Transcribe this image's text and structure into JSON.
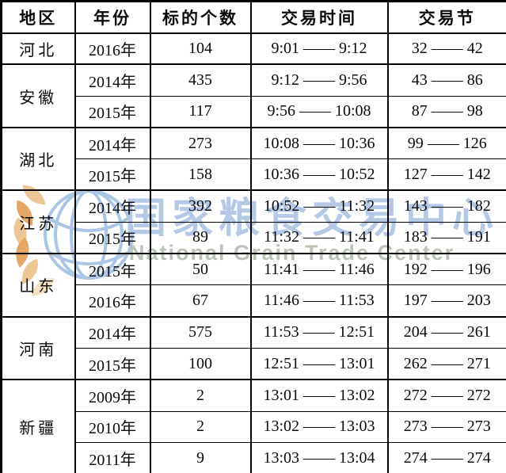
{
  "watermark": {
    "cn_text": "国家粮食交易中心",
    "en_text": "National Grain Trade Center",
    "colors": {
      "cn": "#b5c9e7",
      "en": "#bac3b6",
      "globe": "#aac6e4",
      "wheat": "#ecc795",
      "wheat_dark": "#e5a763",
      "wheat_pale": "#f3e4c2"
    }
  },
  "table": {
    "headers": [
      "地区",
      "年份",
      "标的个数",
      "交易时间",
      "交易节"
    ],
    "groups": [
      {
        "region": "河北",
        "rows": [
          {
            "year": "2016年",
            "count": "104",
            "time": "9:01 —— 9:12",
            "session": "32 —— 42"
          }
        ]
      },
      {
        "region": "安徽",
        "rows": [
          {
            "year": "2014年",
            "count": "435",
            "time": "9:12 —— 9:56",
            "session": "43 —— 86"
          },
          {
            "year": "2015年",
            "count": "117",
            "time": "9:56 —— 10:08",
            "session": "87 —— 98"
          }
        ]
      },
      {
        "region": "湖北",
        "rows": [
          {
            "year": "2014年",
            "count": "273",
            "time": "10:08 —— 10:36",
            "session": "99 —— 126"
          },
          {
            "year": "2015年",
            "count": "158",
            "time": "10:36 —— 10:52",
            "session": "127 —— 142"
          }
        ]
      },
      {
        "region": "江苏",
        "rows": [
          {
            "year": "2014年",
            "count": "392",
            "time": "10:52 —— 11:32",
            "session": "143 —— 182"
          },
          {
            "year": "2015年",
            "count": "89",
            "time": "11:32 —— 11:41",
            "session": "183 —— 191"
          }
        ]
      },
      {
        "region": "山东",
        "rows": [
          {
            "year": "2015年",
            "count": "50",
            "time": "11:41 —— 11:46",
            "session": "192 —— 196"
          },
          {
            "year": "2016年",
            "count": "67",
            "time": "11:46 —— 11:53",
            "session": "197 —— 203"
          }
        ]
      },
      {
        "region": "河南",
        "rows": [
          {
            "year": "2014年",
            "count": "575",
            "time": "11:53 —— 12:51",
            "session": "204 —— 261"
          },
          {
            "year": "2015年",
            "count": "100",
            "time": "12:51 —— 13:01",
            "session": "262 —— 271"
          }
        ]
      },
      {
        "region": "新疆",
        "rows": [
          {
            "year": "2009年",
            "count": "2",
            "time": "13:01 —— 13:02",
            "session": "272 —— 272"
          },
          {
            "year": "2010年",
            "count": "2",
            "time": "13:02 —— 13:03",
            "session": "273 —— 273"
          },
          {
            "year": "2011年",
            "count": "9",
            "time": "13:03 —— 13:04",
            "session": "274 —— 274"
          }
        ]
      }
    ]
  }
}
